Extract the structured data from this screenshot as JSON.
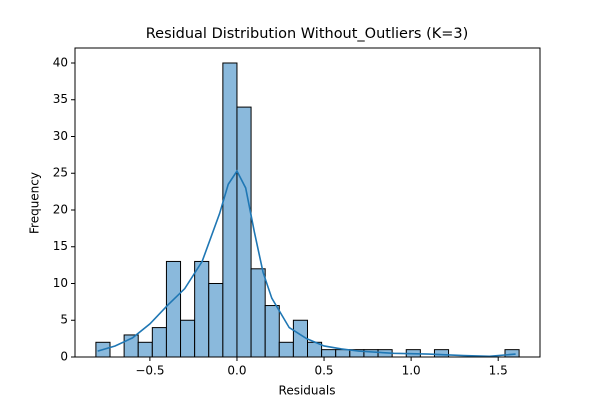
{
  "chart_data": {
    "type": "histogram",
    "title": "Residual Distribution Without_Outliers (K=3)",
    "xlabel": "Residuals",
    "ylabel": "Frequency",
    "bins": [
      -0.81,
      -0.729,
      -0.648,
      -0.567,
      -0.486,
      -0.405,
      -0.324,
      -0.243,
      -0.162,
      -0.081,
      0,
      0.081,
      0.162,
      0.243,
      0.324,
      0.405,
      0.486,
      0.567,
      0.648,
      0.729,
      0.81,
      0.891,
      0.972,
      1.053,
      1.134,
      1.215,
      1.296,
      1.377,
      1.458,
      1.539,
      1.62
    ],
    "counts": [
      2,
      0,
      3,
      2,
      4,
      13,
      5,
      13,
      10,
      40,
      34,
      12,
      7,
      2,
      5,
      2,
      1,
      1,
      1,
      1,
      1,
      0,
      1,
      0,
      1,
      0,
      0,
      0,
      0,
      1
    ],
    "color": "#8ab9dc",
    "edgecolor": "#000000",
    "kde": {
      "color": "#1f77b4",
      "x": [
        -0.8,
        -0.7,
        -0.6,
        -0.5,
        -0.4,
        -0.3,
        -0.2,
        -0.1,
        -0.05,
        0,
        0.05,
        0.1,
        0.15,
        0.2,
        0.3,
        0.4,
        0.5,
        0.6,
        0.7,
        0.9,
        1.1,
        1.3,
        1.45,
        1.6
      ],
      "values": [
        0.8,
        1.5,
        2.6,
        4.5,
        7,
        9.3,
        13,
        19.5,
        23.5,
        25.3,
        23,
        17,
        11.5,
        8,
        4,
        2.5,
        1.5,
        1.1,
        0.8,
        0.5,
        0.4,
        0.2,
        0.1,
        0.4
      ]
    },
    "xlim": [
      -0.93,
      1.74
    ],
    "ylim": [
      0,
      42.04
    ],
    "xticks": [
      {
        "value": -0.5,
        "label": "−0.5"
      },
      {
        "value": 0,
        "label": "0.0"
      },
      {
        "value": 0.5,
        "label": "0.5"
      },
      {
        "value": 1,
        "label": "1.0"
      },
      {
        "value": 1.5,
        "label": "1.5"
      }
    ],
    "yticks": [
      0,
      5,
      10,
      15,
      20,
      25,
      30,
      35,
      40
    ]
  }
}
